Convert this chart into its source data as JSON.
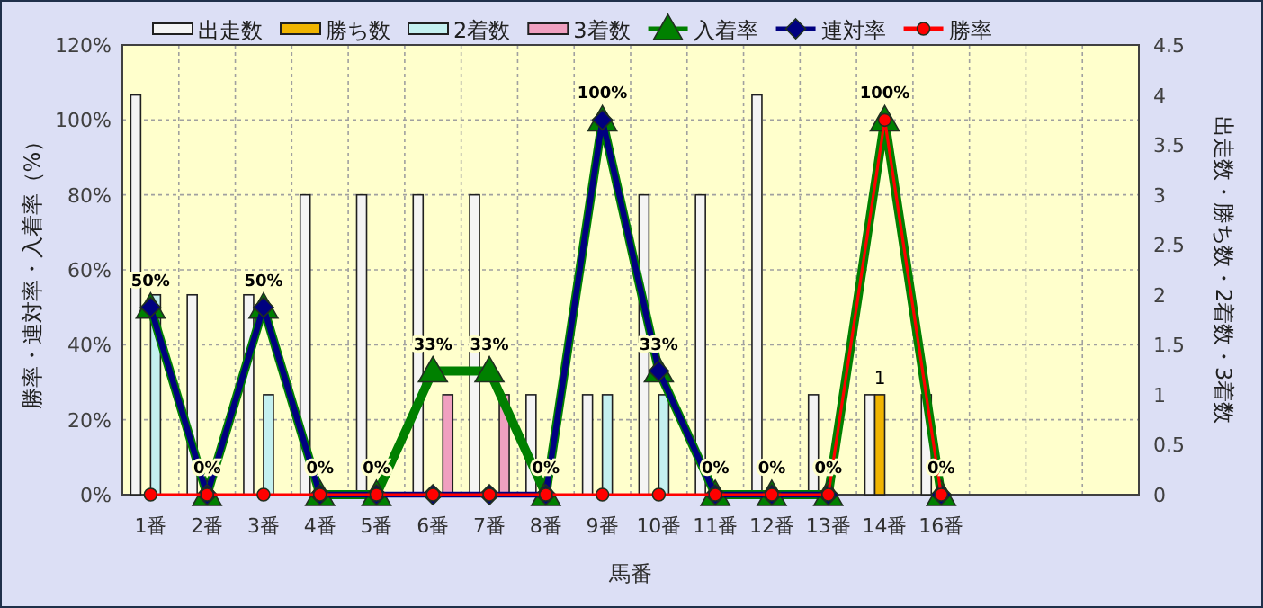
{
  "chart_data": {
    "type": "bar",
    "categories": [
      "1番",
      "2番",
      "3番",
      "4番",
      "5番",
      "6番",
      "7番",
      "8番",
      "9番",
      "10番",
      "11番",
      "12番",
      "13番",
      "14番",
      "16番",
      null,
      null,
      null
    ],
    "xlabel": "馬番",
    "ylabel": "勝率・連対率・入着率（%）",
    "y2label": "出走数・勝ち数・2着数・3着数",
    "ylim": [
      0,
      120
    ],
    "yticks": [
      {
        "value": 0,
        "label": "0%"
      },
      {
        "value": 20,
        "label": "20%"
      },
      {
        "value": 40,
        "label": "40%"
      },
      {
        "value": 60,
        "label": "60%"
      },
      {
        "value": 80,
        "label": "80%"
      },
      {
        "value": 100,
        "label": "100%"
      },
      {
        "value": 120,
        "label": "120%"
      }
    ],
    "y2lim": [
      0,
      4.5
    ],
    "y2ticks": [
      0,
      0.5,
      1,
      1.5,
      2,
      2.5,
      3,
      3.5,
      4,
      4.5
    ],
    "grid": true,
    "legend": "top",
    "series": [
      {
        "name": "出走数",
        "axis": "y2",
        "color": "#f4f4f4",
        "values": [
          4,
          2,
          2,
          3,
          3,
          3,
          3,
          1,
          1,
          3,
          3,
          4,
          1,
          1,
          1,
          null,
          null,
          null
        ]
      },
      {
        "name": "勝ち数",
        "axis": "y2",
        "color": "#f0b400",
        "values": [
          0,
          0,
          0,
          0,
          0,
          0,
          0,
          0,
          0,
          0,
          0,
          0,
          0,
          1,
          0,
          null,
          null,
          null
        ],
        "value_labels": [
          null,
          null,
          null,
          null,
          null,
          null,
          null,
          null,
          null,
          null,
          null,
          null,
          null,
          "1",
          null,
          null,
          null,
          null
        ]
      },
      {
        "name": "2着数",
        "axis": "y2",
        "color": "#c4f0f0",
        "values": [
          2,
          0,
          1,
          0,
          0,
          0,
          0,
          0,
          1,
          1,
          0,
          0,
          0,
          0,
          0,
          null,
          null,
          null
        ]
      },
      {
        "name": "3着数",
        "axis": "y2",
        "color": "#f0a0c0",
        "values": [
          0,
          0,
          0,
          0,
          0,
          1,
          1,
          0,
          0,
          0,
          0,
          0,
          0,
          0,
          0,
          null,
          null,
          null
        ]
      },
      {
        "name": "入着率",
        "type": "line",
        "color": "#008000",
        "marker": "triangle",
        "values": [
          50,
          0,
          50,
          0,
          0,
          33,
          33,
          0,
          100,
          33,
          0,
          0,
          0,
          100,
          0,
          null,
          null,
          null
        ],
        "value_labels": [
          "50%",
          "0%",
          "50%",
          "0%",
          "0%",
          "33%",
          "33%",
          "0%",
          "100%",
          "33%",
          "0%",
          "0%",
          "0%",
          "100%",
          "0%",
          null,
          null,
          null
        ]
      },
      {
        "name": "連対率",
        "type": "line",
        "color": "#000080",
        "marker": "diamond",
        "values": [
          50,
          0,
          50,
          0,
          0,
          0,
          0,
          0,
          100,
          33,
          0,
          0,
          0,
          null,
          0,
          null,
          null,
          null
        ]
      },
      {
        "name": "勝率",
        "type": "line",
        "color": "#ff0000",
        "marker": "circle",
        "values": [
          0,
          0,
          0,
          0,
          0,
          0,
          0,
          0,
          0,
          0,
          0,
          0,
          0,
          100,
          0,
          null,
          null,
          null
        ]
      }
    ]
  }
}
